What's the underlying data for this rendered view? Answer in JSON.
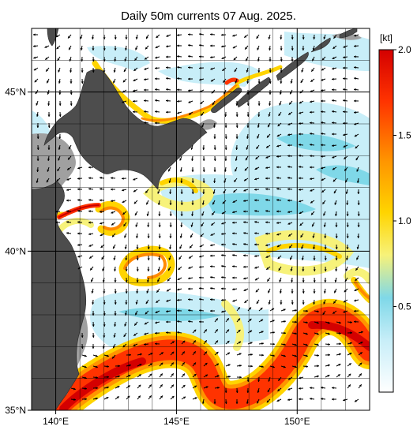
{
  "title": "Daily 50m currents 07 Aug. 2025.",
  "axes": {
    "lon_ticks": [
      {
        "lon": 140,
        "label": "140°E"
      },
      {
        "lon": 145,
        "label": "145°E"
      },
      {
        "lon": 150,
        "label": "150°E"
      }
    ],
    "lat_ticks": [
      {
        "lat": 45,
        "label": "45°N"
      },
      {
        "lat": 40,
        "label": "40°N"
      },
      {
        "lat": 35,
        "label": "35°N"
      }
    ],
    "lon_range": [
      139,
      153
    ],
    "lat_range": [
      35,
      47
    ]
  },
  "colorbar": {
    "unit_label": "[kt]",
    "range": [
      0,
      2.0
    ],
    "ticks": [
      {
        "value": 2.0,
        "label": "2.0"
      },
      {
        "value": 1.5,
        "label": "1.5"
      },
      {
        "value": 1.0,
        "label": "1.0"
      },
      {
        "value": 0.5,
        "label": "0.5"
      }
    ],
    "stops": [
      {
        "v": 0.0,
        "color": "#ffffff"
      },
      {
        "v": 0.3,
        "color": "#c8eef8"
      },
      {
        "v": 0.55,
        "color": "#7fd8e8"
      },
      {
        "v": 0.8,
        "color": "#f7f27a"
      },
      {
        "v": 1.05,
        "color": "#ffd400"
      },
      {
        "v": 1.35,
        "color": "#ff9500"
      },
      {
        "v": 1.7,
        "color": "#ff3300"
      },
      {
        "v": 2.0,
        "color": "#d40000"
      }
    ]
  },
  "colors": {
    "land": "#4d4d4d",
    "shelf": "#a0a0a0",
    "grid": "#000000",
    "arrow": "#000000"
  }
}
